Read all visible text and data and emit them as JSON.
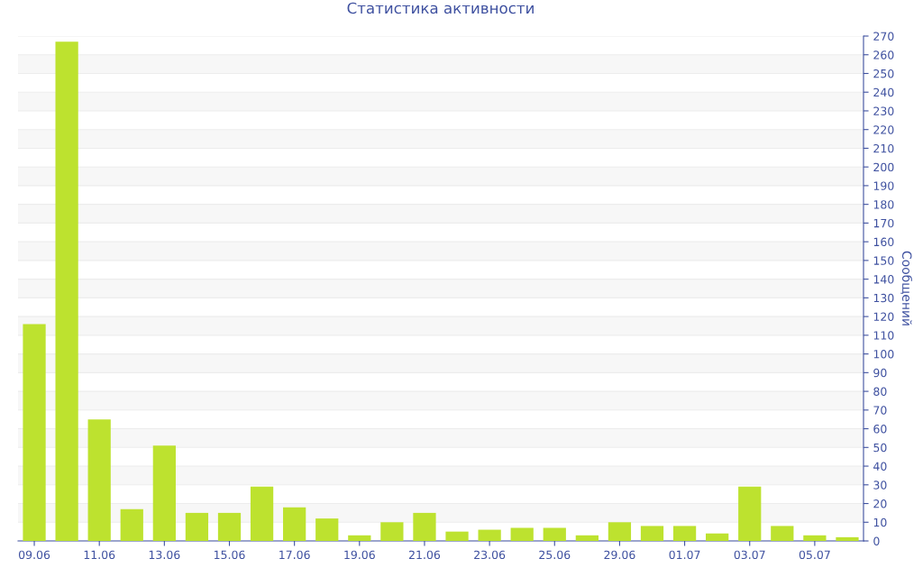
{
  "chart_data": {
    "type": "bar",
    "title": "Статистика активности",
    "ylabel": "Сообщений",
    "categories": [
      "09.06",
      null,
      "11.06",
      null,
      "13.06",
      null,
      "15.06",
      null,
      "17.06",
      null,
      "19.06",
      null,
      "21.06",
      null,
      "23.06",
      null,
      "25.06",
      null,
      "29.06",
      null,
      "01.07",
      null,
      "03.07",
      null,
      "05.07",
      null
    ],
    "values": [
      116,
      267,
      65,
      17,
      51,
      15,
      15,
      29,
      18,
      12,
      3,
      10,
      15,
      5,
      6,
      7,
      7,
      3,
      10,
      8,
      8,
      4,
      29,
      8,
      3,
      2
    ],
    "color": "#bde22f",
    "ylim": [
      0,
      270
    ],
    "yticks": [
      0,
      10,
      20,
      30,
      40,
      50,
      60,
      70,
      80,
      90,
      100,
      110,
      120,
      130,
      140,
      150,
      160,
      170,
      180,
      190,
      200,
      210,
      220,
      230,
      240,
      250,
      260,
      270
    ],
    "grid": "y",
    "legend": false
  }
}
